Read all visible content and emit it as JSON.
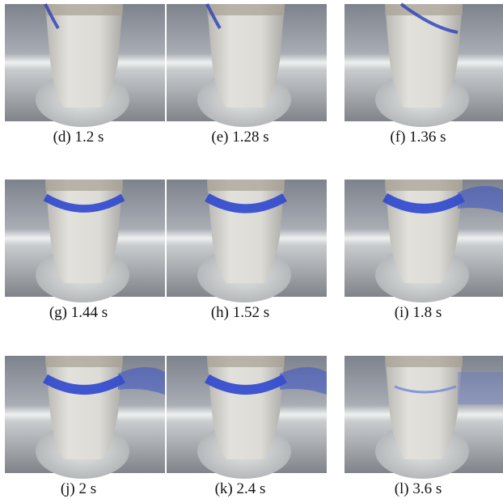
{
  "panels": [
    {
      "label": "(d) 1.2 s"
    },
    {
      "label": "(e) 1.28 s"
    },
    {
      "label": "(f) 1.36 s"
    },
    {
      "label": "(g) 1.44 s"
    },
    {
      "label": "(h) 1.52 s"
    },
    {
      "label": "(i) 1.8 s"
    },
    {
      "label": "(j) 2 s"
    },
    {
      "label": "(k) 2.4 s"
    },
    {
      "label": "(l) 3.6 s"
    }
  ]
}
